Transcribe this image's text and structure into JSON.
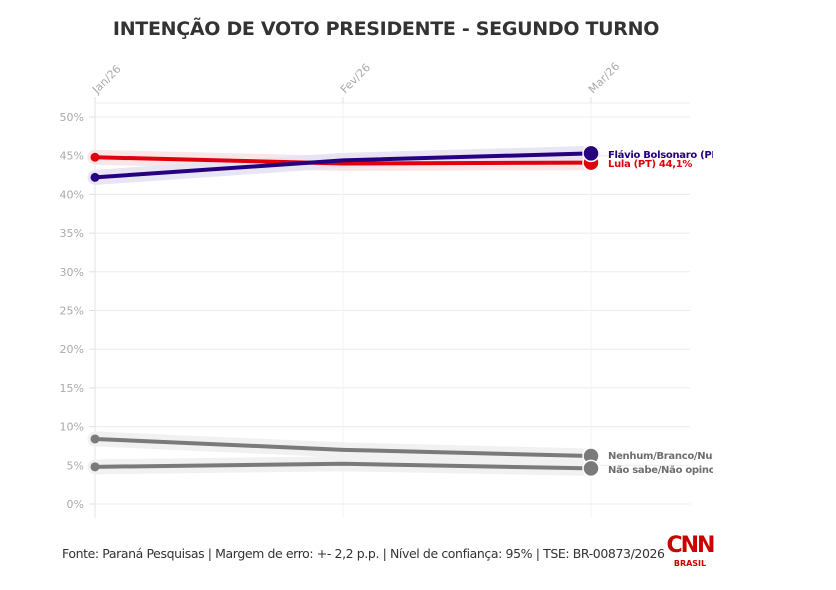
{
  "title": "INTENÇÃO DE VOTO PRESIDENTE - SEGUNDO TURNO",
  "footer": "Fonte: Paraná Pesquisas | Margem de erro: +- 2,2 p.p. | Nível de confiança: 95% | TSE: BR-00873/2026",
  "logo": {
    "text": "CNN",
    "subtext": "BRASIL",
    "color": "#cc0000"
  },
  "chart_data": {
    "type": "line",
    "title": "INTENÇÃO DE VOTO PRESIDENTE - SEGUNDO TURNO",
    "xlabel": "",
    "ylabel": "",
    "x": [
      "Jan/26",
      "Fev/26",
      "Mar/26"
    ],
    "ylim": [
      0,
      50
    ],
    "yticks": [
      0,
      5,
      10,
      15,
      20,
      25,
      30,
      35,
      40,
      45,
      50
    ],
    "ytick_labels": [
      "0%",
      "5%",
      "10%",
      "15%",
      "20%",
      "25%",
      "30%",
      "35%",
      "40%",
      "45%",
      "50%"
    ],
    "grid": true,
    "legend": "direct-labels-right",
    "series": [
      {
        "name": "Lula (PT)",
        "label": "Lula (PT) 44,1%",
        "color": "#e0000b",
        "band": "#fbe3e4",
        "values": [
          44.8,
          44.0,
          44.1
        ]
      },
      {
        "name": "Flávio Bolsonaro (PL)",
        "label": "Flávio Bolsonaro (PL)",
        "color": "#27007f",
        "band": "#e6e2f3",
        "values": [
          42.2,
          44.4,
          45.3
        ]
      },
      {
        "name": "Nenhum/Branco/Nulo",
        "label": "Nenhum/Branco/Nulo",
        "color": "#7a7a7a",
        "band": "#efefef",
        "values": [
          8.4,
          7.0,
          6.2
        ]
      },
      {
        "name": "Não sabe/Não opinou",
        "label": "Não sabe/Não opinou",
        "color": "#7a7a7a",
        "band": "#efefef",
        "values": [
          4.8,
          5.2,
          4.6
        ]
      }
    ]
  }
}
